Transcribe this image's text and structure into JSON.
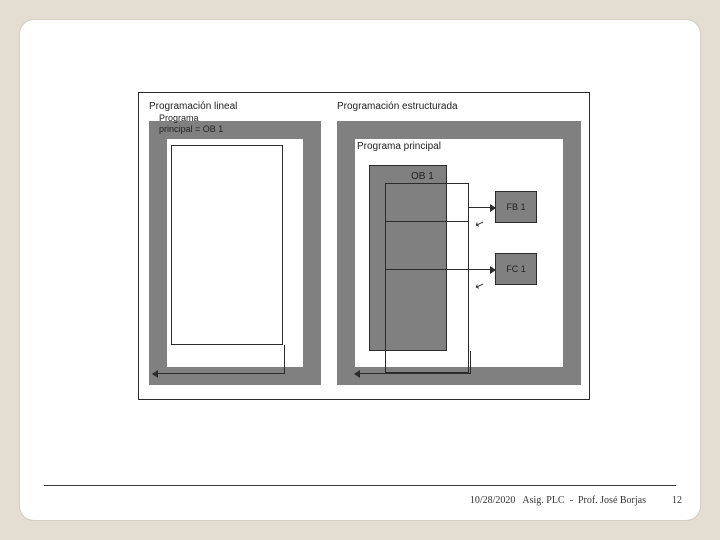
{
  "background_color": "#e3ddd2",
  "slide_bg": "#ffffff",
  "frame_color": "#808080",
  "line_color": "#2b2b2b",
  "linear": {
    "title": "Programación lineal",
    "subtitle": "Programa\nprincipal = OB 1"
  },
  "structured": {
    "title": "Programación estructurada",
    "subtitle": "Programa principal",
    "ob_label": "OB 1",
    "fb_label": "FB 1",
    "fc_label": "FC 1"
  },
  "footer": {
    "date": "10/28/2020",
    "course": "Asig. PLC",
    "sep": "-",
    "author": "Prof. José Borjas",
    "page": "12"
  }
}
